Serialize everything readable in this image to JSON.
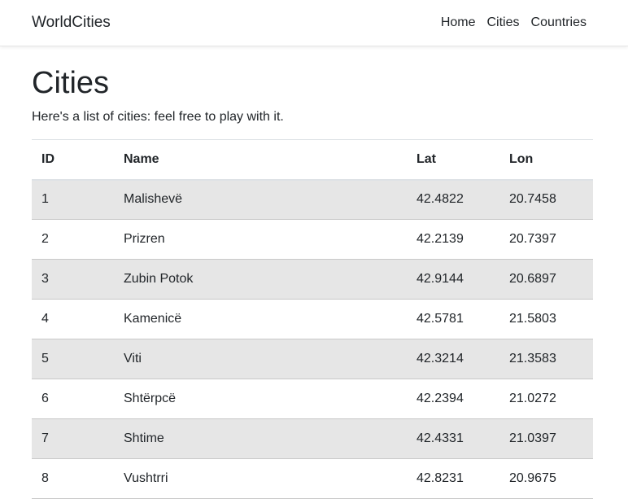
{
  "navbar": {
    "brand": "WorldCities",
    "links": [
      "Home",
      "Cities",
      "Countries"
    ]
  },
  "main": {
    "title": "Cities",
    "lead": "Here's a list of cities: feel free to play with it."
  },
  "table": {
    "headers": [
      "ID",
      "Name",
      "Lat",
      "Lon"
    ],
    "rows": [
      [
        "1",
        "Malishevë",
        "42.4822",
        "20.7458"
      ],
      [
        "2",
        "Prizren",
        "42.2139",
        "20.7397"
      ],
      [
        "3",
        "Zubin Potok",
        "42.9144",
        "20.6897"
      ],
      [
        "4",
        "Kamenicë",
        "42.5781",
        "21.5803"
      ],
      [
        "5",
        "Viti",
        "42.3214",
        "21.3583"
      ],
      [
        "6",
        "Shtërpcë",
        "42.2394",
        "21.0272"
      ],
      [
        "7",
        "Shtime",
        "42.4331",
        "21.0397"
      ],
      [
        "8",
        "Vushtrri",
        "42.8231",
        "20.9675"
      ]
    ]
  }
}
